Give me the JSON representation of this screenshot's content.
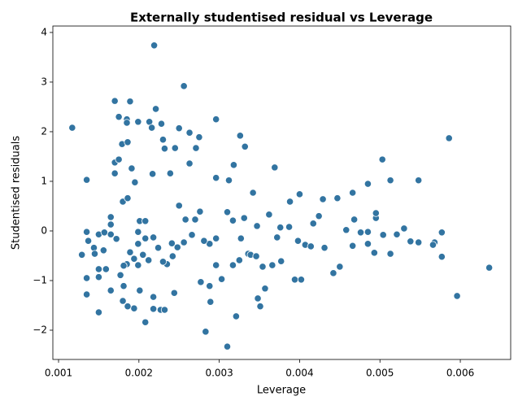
{
  "chart_data": {
    "type": "scatter",
    "title": "Externally studentised residual vs Leverage",
    "x_label": "Leverage",
    "y_label": "Studentised residuals",
    "color": "#3274a1",
    "xlim": [
      0.000929,
      0.006627
    ],
    "ylim": [
      -2.59,
      4.13
    ],
    "xticks": [
      0.001,
      0.002,
      0.003,
      0.004,
      0.005,
      0.006
    ],
    "yticks": [
      {
        "value": -2,
        "label": "−2"
      },
      {
        "value": -1,
        "label": "−1"
      },
      0,
      1,
      2,
      3,
      4
    ],
    "grid": false,
    "x": [
      0.00117,
      0.00129,
      0.00135,
      0.00135,
      0.00135,
      0.00135,
      0.00137,
      0.00144,
      0.00145,
      0.0015,
      0.0015,
      0.0015,
      0.0015,
      0.00156,
      0.00159,
      0.00165,
      0.00165,
      0.00165,
      0.00165,
      0.0017,
      0.0017,
      0.0017,
      0.00172,
      0.00175,
      0.00175,
      0.00177,
      0.00179,
      0.0018,
      0.0018,
      0.00181,
      0.00185,
      0.00185,
      0.00186,
      0.00186,
      0.00189,
      0.00191,
      0.00195,
      0.00199,
      0.00201,
      0.00208,
      0.00208,
      0.00213,
      0.00216,
      0.00217,
      0.00219,
      0.00221,
      0.00228,
      0.0023,
      0.00232,
      0.00239,
      0.00245,
      0.0025,
      0.00256,
      0.00263,
      0.00263,
      0.00271,
      0.00275,
      0.00296,
      0.00296,
      0.00312,
      0.00318,
      0.00326,
      0.00332,
      0.00342,
      0.00369,
      0.00388,
      0.004,
      0.00429,
      0.00447,
      0.00466,
      0.00485,
      0.00503,
      0.00513,
      0.00548,
      0.00586,
      0.00636,
      0.00596,
      0.00283,
      0.0031,
      0.00321,
      0.00348,
      0.00351,
      0.00357,
      0.00377,
      0.00394,
      0.00402,
      0.00442,
      0.0045,
      0.00476,
      0.00493,
      0.00513,
      0.00521,
      0.00568,
      0.00577,
      0.00566,
      0.00577,
      0.00548,
      0.00538,
      0.0053,
      0.00495,
      0.00495,
      0.00468,
      0.00466,
      0.00458,
      0.00424,
      0.00417,
      0.00407,
      0.00387,
      0.00376,
      0.00362,
      0.00347,
      0.00336,
      0.00331,
      0.00317,
      0.0031,
      0.00296,
      0.00276,
      0.0027,
      0.00258,
      0.0025,
      0.00248,
      0.00242,
      0.00235,
      0.0023,
      0.00224,
      0.00218,
      0.00212,
      0.00205,
      0.00199,
      0.00194,
      0.00189,
      0.00185,
      0.00181,
      0.00218,
      0.00218,
      0.00227,
      0.00232,
      0.00244,
      0.00194,
      0.00186,
      0.00201,
      0.00289,
      0.00288,
      0.00277,
      0.00296,
      0.00303,
      0.00317,
      0.00325,
      0.00339,
      0.00354,
      0.00366,
      0.00346,
      0.00288,
      0.00281,
      0.00256,
      0.00266,
      0.00241,
      0.00199,
      0.00199,
      0.00157,
      0.00208,
      0.00327,
      0.00372,
      0.00398,
      0.00414,
      0.00431,
      0.00485,
      0.00485,
      0.00504
    ],
    "values": [
      2.08,
      -0.48,
      1.03,
      -0.02,
      -0.95,
      -1.28,
      -0.2,
      -0.34,
      -0.46,
      -0.07,
      -0.77,
      -1.64,
      -0.93,
      -0.39,
      -0.77,
      0.28,
      0.13,
      -0.07,
      -1.2,
      2.62,
      1.38,
      1.16,
      -0.16,
      2.3,
      1.44,
      -0.89,
      1.75,
      0.59,
      -1.41,
      -1.11,
      2.25,
      2.18,
      1.79,
      0.66,
      2.61,
      1.26,
      0.98,
      2.2,
      0.2,
      -1.84,
      0.2,
      2.2,
      2.08,
      1.15,
      3.74,
      2.46,
      2.16,
      1.84,
      1.66,
      1.16,
      1.67,
      2.07,
      2.92,
      1.98,
      1.36,
      1.67,
      1.89,
      2.25,
      1.07,
      1.02,
      1.33,
      1.92,
      1.7,
      0.77,
      1.28,
      0.59,
      0.74,
      0.64,
      0.66,
      0.77,
      0.95,
      1.44,
      1.02,
      1.02,
      1.87,
      -0.74,
      -1.31,
      -2.03,
      -2.33,
      -1.72,
      -1.36,
      -1.52,
      -1.16,
      -0.61,
      -0.98,
      -0.98,
      -0.85,
      -0.72,
      -0.03,
      -0.44,
      -0.46,
      -0.07,
      -0.23,
      -0.52,
      -0.28,
      -0.03,
      -0.23,
      -0.21,
      0.05,
      0.26,
      0.36,
      0.23,
      -0.3,
      0.02,
      0.3,
      0.15,
      -0.28,
      0.08,
      0.07,
      0.33,
      0.1,
      -0.46,
      0.26,
      0.21,
      0.38,
      -0.15,
      0.39,
      0.23,
      0.23,
      0.51,
      -0.33,
      -0.51,
      -0.67,
      -0.62,
      -0.34,
      -0.13,
      -0.59,
      -0.48,
      -0.69,
      -0.56,
      -0.43,
      -0.67,
      -0.7,
      -1.33,
      -1.57,
      -1.59,
      -1.59,
      -1.25,
      -1.56,
      -1.52,
      -1.2,
      -1.43,
      -1.11,
      -1.03,
      -0.69,
      -0.97,
      -0.69,
      -0.59,
      -0.48,
      -0.72,
      -0.69,
      -0.51,
      -0.26,
      -0.2,
      -0.23,
      -0.08,
      -0.25,
      -0.26,
      -0.02,
      -0.03,
      -0.15,
      -0.15,
      -0.13,
      -0.2,
      -0.31,
      -0.34,
      -0.02,
      -0.26,
      -0.08
    ]
  }
}
